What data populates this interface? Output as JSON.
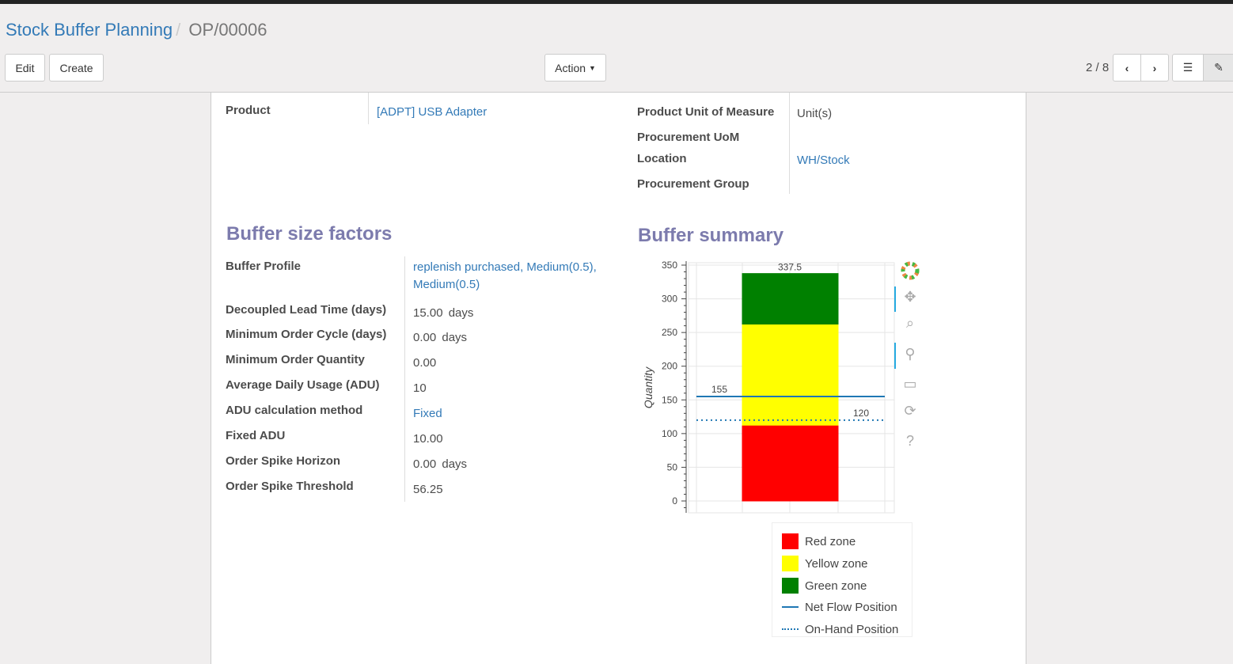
{
  "breadcrumb": {
    "parent": "Stock Buffer Planning",
    "current": "OP/00006"
  },
  "buttons": {
    "edit": "Edit",
    "create": "Create",
    "action": "Action"
  },
  "pager": {
    "text": "2 / 8"
  },
  "fields": {
    "product_label": "Product",
    "product_value": "[ADPT] USB Adapter",
    "uom_label": "Product Unit of Measure",
    "uom_value": "Unit(s)",
    "proc_uom_label": "Procurement UoM",
    "location_label": "Location",
    "location_value": "WH/Stock",
    "proc_group_label": "Procurement Group"
  },
  "factors": {
    "title": "Buffer size factors",
    "rows": [
      {
        "label": "Buffer Profile",
        "value": "replenish purchased, Medium(0.5), Medium(0.5)",
        "unit": ""
      },
      {
        "label": "Decoupled Lead Time (days)",
        "value": "15.00",
        "unit": "days"
      },
      {
        "label": "Minimum Order Cycle (days)",
        "value": "0.00",
        "unit": "days"
      },
      {
        "label": "Minimum Order Quantity",
        "value": "0.00",
        "unit": ""
      },
      {
        "label": "Average Daily Usage (ADU)",
        "value": "10",
        "unit": ""
      },
      {
        "label": "ADU calculation method",
        "value": "Fixed",
        "unit": ""
      },
      {
        "label": "Fixed ADU",
        "value": "10.00",
        "unit": ""
      },
      {
        "label": "Order Spike Horizon",
        "value": "0.00",
        "unit": "days"
      },
      {
        "label": "Order Spike Threshold",
        "value": "56.25",
        "unit": ""
      }
    ]
  },
  "summary": {
    "title": "Buffer summary"
  },
  "chart_data": {
    "type": "bar",
    "stacked": true,
    "ylabel": "Quantity",
    "ylim": [
      0,
      350
    ],
    "yticks": [
      0,
      50,
      100,
      150,
      200,
      250,
      300,
      350
    ],
    "grid": true,
    "series": [
      {
        "name": "Red zone",
        "from": 0,
        "to": 112.5,
        "label": "112.5",
        "color": "#ff0000"
      },
      {
        "name": "Yellow zone",
        "from": 112.5,
        "to": 262.5,
        "label": "262.5",
        "color": "#ffff00"
      },
      {
        "name": "Green zone",
        "from": 262.5,
        "to": 337.5,
        "label": "337.5",
        "color": "#008000"
      }
    ],
    "lines": [
      {
        "name": "Net Flow Position",
        "value": 155,
        "label": "155",
        "style": "solid",
        "color": "#1f77b4"
      },
      {
        "name": "On-Hand Position",
        "value": 120,
        "label": "120",
        "style": "dotted",
        "color": "#1f77b4"
      }
    ],
    "legend_position": "bottom-right"
  },
  "toolbar_icons": [
    "bokeh-logo-icon",
    "pan-icon",
    "box-zoom-icon",
    "wheel-zoom-icon",
    "save-icon",
    "reset-icon",
    "help-icon"
  ]
}
